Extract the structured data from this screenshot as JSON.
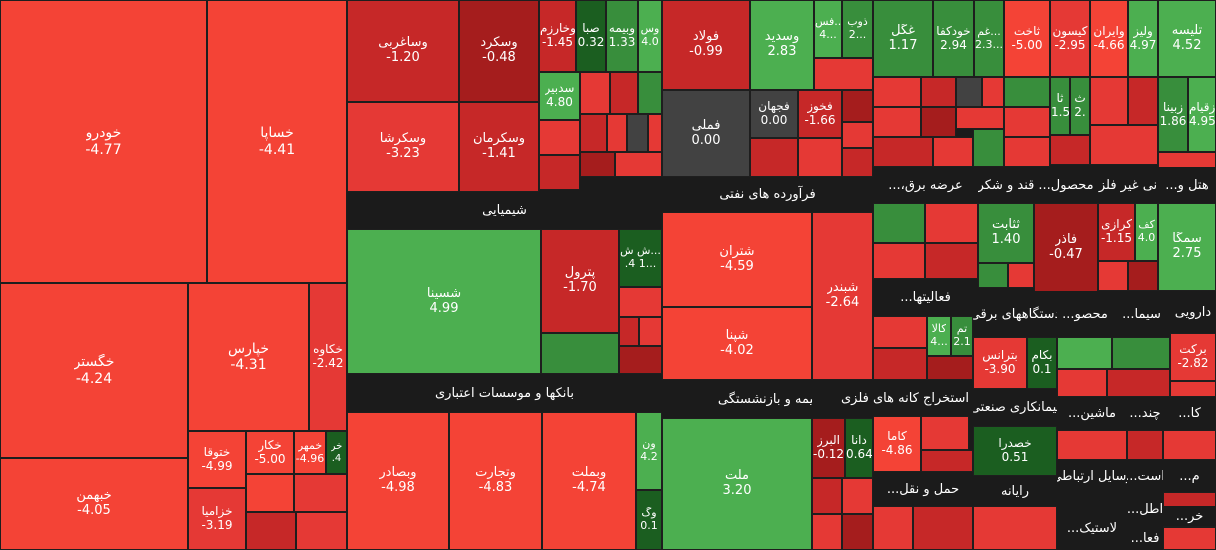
{
  "colors": {
    "strong_neg": "#f44336",
    "neg": "#e53935",
    "mid_neg": "#c62828",
    "dark_neg": "#a51d1d",
    "neutral": "#424242",
    "mid_pos": "#388e3c",
    "pos": "#4caf50",
    "dark_pos": "#1b5e20"
  },
  "chart_data": {
    "type": "treemap",
    "sectors": [
      {
        "name": "شیمیایی"
      },
      {
        "name": "فرآورده های نفتی"
      },
      {
        "name": "بانکها و موسسات اعتباری"
      },
      {
        "name": "بیمه و بازنشستگی"
      },
      {
        "name": "استخراج کانه های فلزی"
      },
      {
        "name": "عرضه برق،..."
      },
      {
        "name": "قند و شکر"
      },
      {
        "name": "محصول..."
      },
      {
        "name": "کانی غیر فلزی"
      },
      {
        "name": "هتل و..."
      },
      {
        "name": "فعالیتها..."
      },
      {
        "name": "دستگاههای برقی"
      },
      {
        "name": "محصو..."
      },
      {
        "name": "سیما..."
      },
      {
        "name": "دارویی"
      },
      {
        "name": "پیمانکاری صنعتی"
      },
      {
        "name": "ماشین..."
      },
      {
        "name": "چند..."
      },
      {
        "name": "کا..."
      },
      {
        "name": "حمل و نقل..."
      },
      {
        "name": "رایانه"
      },
      {
        "name": "وسایل ارتباطی"
      },
      {
        "name": "است..."
      },
      {
        "name": "م..."
      },
      {
        "name": "ف..."
      },
      {
        "name": "لاستیک..."
      },
      {
        "name": "اطل..."
      },
      {
        "name": "خر..."
      },
      {
        "name": "فعا..."
      }
    ],
    "stocks": [
      {
        "name": "خودرو",
        "change": "-4.77"
      },
      {
        "name": "خساپا",
        "change": "-4.41"
      },
      {
        "name": "خگستر",
        "change": "-4.24"
      },
      {
        "name": "خپارس",
        "change": "-4.31"
      },
      {
        "name": "خکاوه",
        "change": "-2.42"
      },
      {
        "name": "خبهمن",
        "change": "-4.05"
      },
      {
        "name": "ختوقا",
        "change": "-4.99"
      },
      {
        "name": "خکار",
        "change": "-5.00"
      },
      {
        "name": "خمهر",
        "change": "-4.96"
      },
      {
        "name": "خر",
        "change": ".4"
      },
      {
        "name": "خزامیا",
        "change": "-3.19"
      },
      {
        "name": "وساغربی",
        "change": "-1.20"
      },
      {
        "name": "وسکرد",
        "change": "-0.48"
      },
      {
        "name": "وخارزم",
        "change": "-1.45"
      },
      {
        "name": "صبا",
        "change": "0.32"
      },
      {
        "name": "وبیمه",
        "change": "1.33"
      },
      {
        "name": "وس",
        "change": "4.0"
      },
      {
        "name": "سدبیر",
        "change": "4.80"
      },
      {
        "name": "وسکرشا",
        "change": "-3.23"
      },
      {
        "name": "وسکرمان",
        "change": "-1.41"
      },
      {
        "name": "فولاد",
        "change": "-0.99"
      },
      {
        "name": "وسدید",
        "change": "2.83"
      },
      {
        "name": "فس...",
        "change": "4..."
      },
      {
        "name": "ذوب",
        "change": "2..."
      },
      {
        "name": "فملی",
        "change": "0.00"
      },
      {
        "name": "فجهان",
        "change": "0.00"
      },
      {
        "name": "فخوز",
        "change": "-1.66"
      },
      {
        "name": "غگل",
        "change": "1.17"
      },
      {
        "name": "خودکفا",
        "change": "2.94"
      },
      {
        "name": "غم...",
        "change": "2.3..."
      },
      {
        "name": "ثاخت",
        "change": "-5.00"
      },
      {
        "name": "کیسون",
        "change": "-2.95"
      },
      {
        "name": "وایران",
        "change": "-4.66"
      },
      {
        "name": "ولیز",
        "change": "4.97"
      },
      {
        "name": "ثا",
        "change": "1.5"
      },
      {
        "name": "ث",
        "change": "2."
      },
      {
        "name": "تلیسه",
        "change": "4.52"
      },
      {
        "name": "زبینا",
        "change": "1.86"
      },
      {
        "name": "زقیام",
        "change": "4.95"
      },
      {
        "name": "شسینا",
        "change": "4.99"
      },
      {
        "name": "پترول",
        "change": "-1.70"
      },
      {
        "name": "ش ش...",
        "change": ".4 1..."
      },
      {
        "name": "شتران",
        "change": "-4.59"
      },
      {
        "name": "شبندر",
        "change": "-2.64"
      },
      {
        "name": "شپنا",
        "change": "-4.02"
      },
      {
        "name": "ثثابت",
        "change": "1.40"
      },
      {
        "name": "فاذر",
        "change": "-0.47"
      },
      {
        "name": "کرازی",
        "change": "-1.15"
      },
      {
        "name": "کف",
        "change": "4.0"
      },
      {
        "name": "سمگا",
        "change": "2.75"
      },
      {
        "name": "وبصادر",
        "change": "-4.98"
      },
      {
        "name": "وتجارت",
        "change": "-4.83"
      },
      {
        "name": "وبملت",
        "change": "-4.74"
      },
      {
        "name": "ون",
        "change": "4.2"
      },
      {
        "name": "وگ",
        "change": "0.1"
      },
      {
        "name": "ملت",
        "change": "3.20"
      },
      {
        "name": "البرز",
        "change": "-0.12"
      },
      {
        "name": "دانا",
        "change": "0.64"
      },
      {
        "name": "کاما",
        "change": "-4.86"
      },
      {
        "name": "کالا",
        "change": "4..."
      },
      {
        "name": "تم",
        "change": "2.1"
      },
      {
        "name": "بترانس",
        "change": "-3.90"
      },
      {
        "name": "بکام",
        "change": "0.1"
      },
      {
        "name": "برکت",
        "change": "-2.82"
      },
      {
        "name": "خصدرا",
        "change": "0.51"
      }
    ]
  }
}
